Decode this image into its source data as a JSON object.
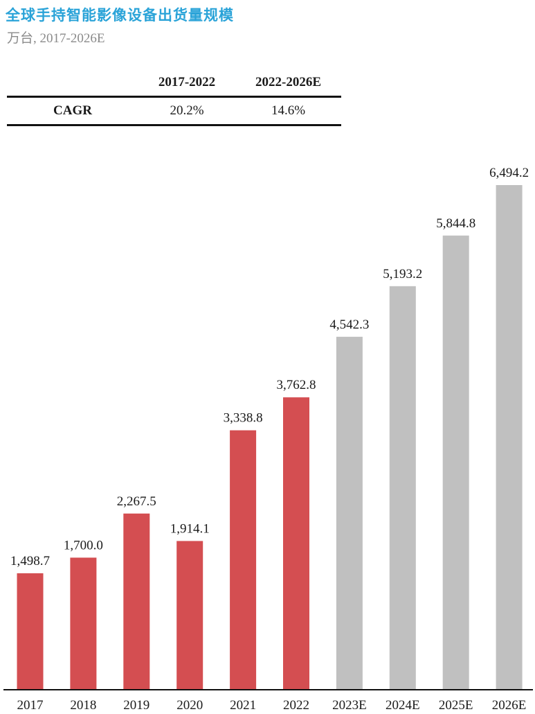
{
  "title": "全球手持智能影像设备出货量规模",
  "subtitle": "万台, 2017-2026E",
  "cagr_table": {
    "headers": [
      "",
      "2017-2022",
      "2022-2026E"
    ],
    "row": {
      "label": "CAGR",
      "values": [
        "20.2%",
        "14.6%"
      ]
    }
  },
  "colors": {
    "actual": "#d44e51",
    "forecast": "#c0c0c0",
    "title": "#2aa3d8"
  },
  "chart_data": {
    "type": "bar",
    "categories": [
      "2017",
      "2018",
      "2019",
      "2020",
      "2021",
      "2022",
      "2023E",
      "2024E",
      "2025E",
      "2026E"
    ],
    "values": [
      1498.7,
      1700.0,
      2267.5,
      1914.1,
      3338.8,
      3762.8,
      4542.3,
      5193.2,
      5844.8,
      6494.2
    ],
    "data_labels": [
      "1,498.7",
      "1,700.0",
      "2,267.5",
      "1,914.1",
      "3,338.8",
      "3,762.8",
      "4,542.3",
      "5,193.2",
      "5,844.8",
      "6,494.2"
    ],
    "forecast": [
      false,
      false,
      false,
      false,
      false,
      false,
      true,
      true,
      true,
      true
    ],
    "title": "全球手持智能影像设备出货量规模",
    "xlabel": "",
    "ylabel": "",
    "grid": false
  }
}
